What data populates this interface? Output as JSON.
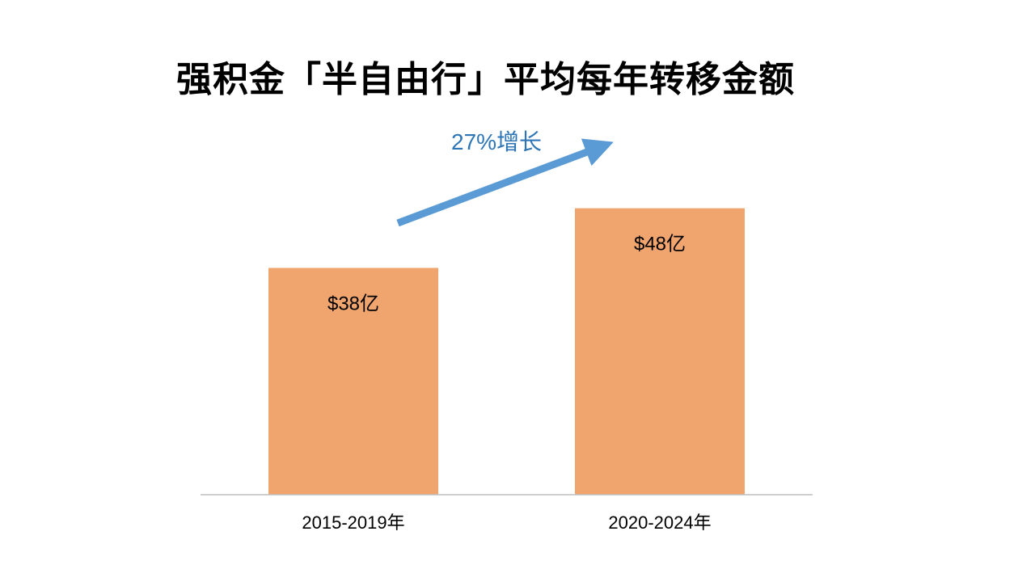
{
  "chart_data": {
    "type": "bar",
    "title": "强积金「半自由行」平均每年转移金额",
    "categories": [
      "2015-2019年",
      "2020-2024年"
    ],
    "values": [
      38,
      48
    ],
    "data_labels": [
      "$38亿",
      "$48亿"
    ],
    "ylim": [
      0,
      60
    ],
    "grid": false,
    "annotation": "27%增长",
    "colors": {
      "bar": "#F0A46E",
      "axis": "#BFBFBF",
      "annotation": "#5B9BD5",
      "annotation_text": "#2E75B6"
    }
  }
}
